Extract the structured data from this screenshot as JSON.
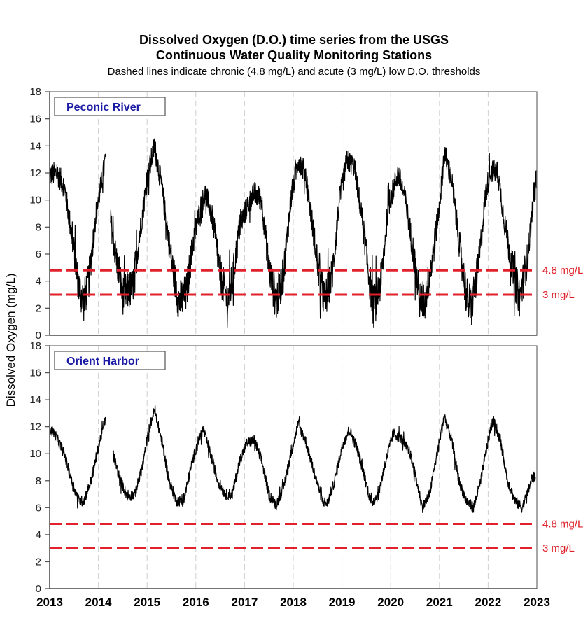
{
  "chart_data": {
    "type": "line",
    "title": "Dissolved Oxygen (D.O.) time series from the USGS",
    "title_line2": "Continuous Water Quality Monitoring Stations",
    "subtitle": "Dashed lines indicate chronic (4.8 mg/L) and acute (3 mg/L) low D.O. thresholds",
    "ylabel": "Dissolved Oxygen (mg/L)",
    "xlabel": "",
    "xlim": [
      2013,
      2023
    ],
    "ylim": [
      0,
      18
    ],
    "x_ticks": [
      "2013",
      "2014",
      "2015",
      "2016",
      "2017",
      "2018",
      "2019",
      "2020",
      "2021",
      "2022",
      "2023"
    ],
    "y_ticks": [
      "0",
      "2",
      "4",
      "6",
      "8",
      "10",
      "12",
      "14",
      "16",
      "18"
    ],
    "grid": "vertical dashed at each year",
    "thresholds": [
      {
        "name": "chronic",
        "value": 4.8,
        "label": "4.8 mg/L",
        "color": "#e0202a"
      },
      {
        "name": "acute",
        "value": 3,
        "label": "3 mg/L",
        "color": "#e0202a"
      }
    ],
    "line_color": "#000000",
    "panel_label_color": "#1a1aa6",
    "panels": [
      {
        "name": "Peconic River",
        "series_note": "Approximate seasonal envelope read from chart; high-frequency noise amplitude in mg/L",
        "noise": 1.6,
        "segments": [
          [
            [
              2013.0,
              11.8
            ],
            [
              2013.15,
              12.0
            ],
            [
              2013.3,
              11.0
            ],
            [
              2013.45,
              7.5
            ],
            [
              2013.6,
              3.5
            ],
            [
              2013.7,
              2.5
            ],
            [
              2013.8,
              4.0
            ],
            [
              2013.95,
              9.0
            ],
            [
              2014.1,
              12.0
            ],
            [
              2014.15,
              13.2
            ]
          ],
          [
            [
              2014.25,
              8.5
            ],
            [
              2014.35,
              6.0
            ],
            [
              2014.5,
              3.0
            ],
            [
              2014.7,
              3.5
            ],
            [
              2014.85,
              7.5
            ],
            [
              2015.0,
              11.5
            ],
            [
              2015.15,
              14.0
            ],
            [
              2015.3,
              11.0
            ],
            [
              2015.5,
              5.5
            ],
            [
              2015.65,
              2.5
            ],
            [
              2015.8,
              3.0
            ],
            [
              2015.95,
              7.0
            ],
            [
              2016.1,
              9.5
            ],
            [
              2016.2,
              10.5
            ],
            [
              2016.35,
              8.5
            ],
            [
              2016.5,
              4.5
            ],
            [
              2016.65,
              2.5
            ],
            [
              2016.75,
              4.0
            ],
            [
              2016.9,
              8.0
            ],
            [
              2017.05,
              9.5
            ],
            [
              2017.2,
              10.5
            ],
            [
              2017.35,
              10.0
            ],
            [
              2017.5,
              5.0
            ],
            [
              2017.65,
              2.5
            ],
            [
              2017.8,
              4.5
            ],
            [
              2017.95,
              10.0
            ],
            [
              2018.1,
              13.0
            ],
            [
              2018.25,
              12.0
            ],
            [
              2018.4,
              8.0
            ],
            [
              2018.55,
              4.0
            ],
            [
              2018.65,
              2.5
            ],
            [
              2018.8,
              4.5
            ],
            [
              2018.95,
              10.0
            ],
            [
              2019.1,
              13.0
            ],
            [
              2019.25,
              12.5
            ],
            [
              2019.4,
              9.0
            ],
            [
              2019.55,
              4.5
            ],
            [
              2019.65,
              2.0
            ],
            [
              2019.8,
              4.0
            ],
            [
              2019.95,
              9.5
            ],
            [
              2020.15,
              12.0
            ],
            [
              2020.3,
              10.0
            ],
            [
              2020.45,
              6.5
            ],
            [
              2020.6,
              2.5
            ],
            [
              2020.7,
              2.5
            ],
            [
              2020.85,
              5.5
            ],
            [
              2021.0,
              9.5
            ],
            [
              2021.1,
              13.5
            ],
            [
              2021.25,
              11.5
            ],
            [
              2021.4,
              7.0
            ],
            [
              2021.55,
              3.0
            ],
            [
              2021.65,
              2.0
            ],
            [
              2021.8,
              5.0
            ],
            [
              2021.95,
              10.5
            ],
            [
              2022.05,
              12.2
            ],
            [
              2022.2,
              12.0
            ],
            [
              2022.35,
              8.0
            ],
            [
              2022.55,
              4.0
            ],
            [
              2022.65,
              2.8
            ],
            [
              2022.8,
              5.5
            ],
            [
              2022.9,
              9.0
            ],
            [
              2023.0,
              12.0
            ]
          ]
        ]
      },
      {
        "name": "Orient Harbor",
        "series_note": "Approximate seasonal envelope read from chart; high-frequency noise amplitude in mg/L",
        "noise": 0.5,
        "segments": [
          [
            [
              2013.0,
              11.8
            ],
            [
              2013.1,
              11.5
            ],
            [
              2013.3,
              10.0
            ],
            [
              2013.45,
              8.0
            ],
            [
              2013.6,
              6.5
            ],
            [
              2013.7,
              6.5
            ],
            [
              2013.85,
              8.0
            ],
            [
              2014.0,
              10.5
            ],
            [
              2014.15,
              12.7
            ]
          ],
          [
            [
              2014.3,
              10.0
            ],
            [
              2014.45,
              8.0
            ],
            [
              2014.6,
              6.8
            ],
            [
              2014.75,
              7.0
            ],
            [
              2014.9,
              9.0
            ],
            [
              2015.05,
              12.0
            ],
            [
              2015.15,
              13.2
            ],
            [
              2015.3,
              11.0
            ],
            [
              2015.45,
              8.0
            ],
            [
              2015.6,
              6.5
            ],
            [
              2015.75,
              6.5
            ],
            [
              2015.9,
              9.0
            ],
            [
              2016.05,
              11.0
            ],
            [
              2016.15,
              11.8
            ],
            [
              2016.3,
              10.0
            ],
            [
              2016.45,
              8.0
            ],
            [
              2016.6,
              7.0
            ],
            [
              2016.75,
              7.0
            ],
            [
              2016.9,
              9.5
            ],
            [
              2017.05,
              10.8
            ],
            [
              2017.2,
              11.0
            ],
            [
              2017.35,
              9.5
            ],
            [
              2017.5,
              7.0
            ],
            [
              2017.65,
              6.2
            ],
            [
              2017.8,
              7.5
            ],
            [
              2017.95,
              10.0
            ],
            [
              2018.1,
              12.2
            ],
            [
              2018.25,
              11.0
            ],
            [
              2018.4,
              9.0
            ],
            [
              2018.6,
              6.5
            ],
            [
              2018.7,
              6.3
            ],
            [
              2018.85,
              8.0
            ],
            [
              2019.0,
              10.5
            ],
            [
              2019.15,
              11.8
            ],
            [
              2019.3,
              10.5
            ],
            [
              2019.45,
              8.5
            ],
            [
              2019.6,
              6.3
            ],
            [
              2019.75,
              7.0
            ],
            [
              2019.9,
              9.5
            ],
            [
              2020.05,
              11.5
            ],
            [
              2020.2,
              11.2
            ],
            [
              2020.4,
              10.0
            ],
            [
              2020.5,
              8.5
            ],
            [
              2020.65,
              6.0
            ],
            [
              2020.8,
              7.0
            ],
            [
              2020.95,
              10.0
            ],
            [
              2021.1,
              12.8
            ],
            [
              2021.25,
              11.0
            ],
            [
              2021.4,
              8.0
            ],
            [
              2021.55,
              6.5
            ],
            [
              2021.7,
              6.0
            ],
            [
              2021.85,
              8.0
            ],
            [
              2022.0,
              11.0
            ],
            [
              2022.1,
              12.5
            ],
            [
              2022.25,
              11.0
            ],
            [
              2022.4,
              8.0
            ],
            [
              2022.55,
              6.5
            ],
            [
              2022.7,
              6.0
            ],
            [
              2022.8,
              7.0
            ],
            [
              2022.9,
              8.2
            ],
            [
              2022.97,
              8.3
            ]
          ]
        ]
      }
    ]
  }
}
